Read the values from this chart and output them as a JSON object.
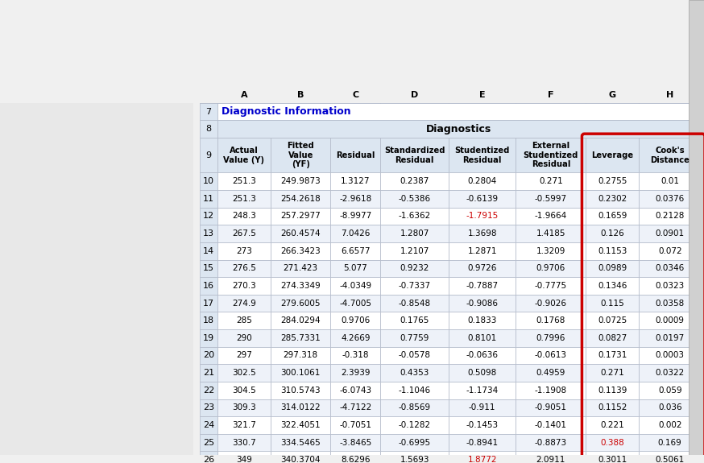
{
  "title": "Diagnostic Information",
  "diagnostics_header": "Diagnostics",
  "col_headers": [
    "Actual\nValue (Y)",
    "Fitted\nValue\n(YF)",
    "Residual",
    "Standardized\nResidual",
    "Studentized\nResidual",
    "External\nStudentized\nResidual",
    "Leverage",
    "Cook's\nDistance"
  ],
  "col_labels": [
    "A",
    "B",
    "C",
    "D",
    "E",
    "F",
    "G",
    "H"
  ],
  "row_numbers": [
    10,
    11,
    12,
    13,
    14,
    15,
    16,
    17,
    18,
    19,
    20,
    21,
    22,
    23,
    24,
    25,
    26
  ],
  "rows": [
    [
      251.3,
      249.9873,
      1.3127,
      0.2387,
      0.2804,
      0.271,
      0.2755,
      0.01
    ],
    [
      251.3,
      254.2618,
      -2.9618,
      -0.5386,
      -0.6139,
      -0.5997,
      0.2302,
      0.0376
    ],
    [
      248.3,
      257.2977,
      -8.9977,
      -1.6362,
      -1.7915,
      -1.9664,
      0.1659,
      0.2128
    ],
    [
      267.5,
      260.4574,
      7.0426,
      1.2807,
      1.3698,
      1.4185,
      0.126,
      0.0901
    ],
    [
      273,
      266.3423,
      6.6577,
      1.2107,
      1.2871,
      1.3209,
      0.1153,
      0.072
    ],
    [
      276.5,
      271.423,
      5.077,
      0.9232,
      0.9726,
      0.9706,
      0.0989,
      0.0346
    ],
    [
      270.3,
      274.3349,
      -4.0349,
      -0.7337,
      -0.7887,
      -0.7775,
      0.1346,
      0.0323
    ],
    [
      274.9,
      279.6005,
      -4.7005,
      -0.8548,
      -0.9086,
      -0.9026,
      0.115,
      0.0358
    ],
    [
      285,
      284.0294,
      0.9706,
      0.1765,
      0.1833,
      0.1768,
      0.0725,
      0.0009
    ],
    [
      290,
      285.7331,
      4.2669,
      0.7759,
      0.8101,
      0.7996,
      0.0827,
      0.0197
    ],
    [
      297,
      297.318,
      -0.318,
      -0.0578,
      -0.0636,
      -0.0613,
      0.1731,
      0.0003
    ],
    [
      302.5,
      300.1061,
      2.3939,
      0.4353,
      0.5098,
      0.4959,
      0.271,
      0.0322
    ],
    [
      304.5,
      310.5743,
      -6.0743,
      -1.1046,
      -1.1734,
      -1.1908,
      0.1139,
      0.059
    ],
    [
      309.3,
      314.0122,
      -4.7122,
      -0.8569,
      -0.911,
      -0.9051,
      0.1152,
      0.036
    ],
    [
      321.7,
      322.4051,
      -0.7051,
      -0.1282,
      -0.1453,
      -0.1401,
      0.221,
      0.002
    ],
    [
      330.7,
      334.5465,
      -3.8465,
      -0.6995,
      -0.8941,
      -0.8873,
      0.388,
      0.169
    ],
    [
      349,
      340.3704,
      8.6296,
      1.5693,
      1.8772,
      2.0911,
      0.3011,
      0.5061
    ]
  ],
  "red_cells": {
    "12_E": "-1.7915",
    "25_G": "0.388",
    "26_E": "1.8772"
  },
  "circle_cols": [
    "G",
    "H"
  ],
  "bg_color": "#f0f0f0",
  "header_bg": "#dce6f1",
  "alt_row_bg": "#ffffff",
  "row_bg": "#eef2f9",
  "title_color": "#0000cc",
  "red_color": "#cc0000",
  "normal_color": "#000000",
  "grid_color": "#b0b8c8",
  "row_num_bg": "#dce6f1"
}
